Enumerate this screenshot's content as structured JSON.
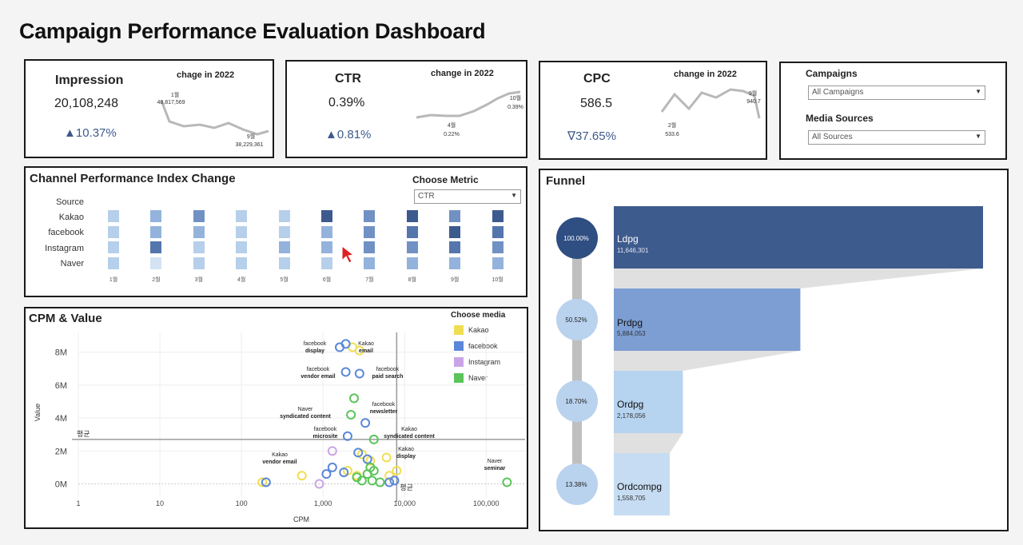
{
  "dashboard": {
    "title": "Campaign Performance Evaluation Dashboard"
  },
  "kpis": {
    "impression": {
      "name": "Impression",
      "value": "20,108,248",
      "change": "▲10.37%",
      "spark_title": "chage in 2022",
      "start_label": "1월",
      "start_value": "48,817,569",
      "end_label": "9월",
      "end_value": "38,229,361"
    },
    "ctr": {
      "name": "CTR",
      "value": "0.39%",
      "change": "▲0.81%",
      "spark_title": "change in 2022",
      "min_label": "4월",
      "min_value": "0.22%",
      "end_label": "10월",
      "end_value": "0.39%"
    },
    "cpc": {
      "name": "CPC",
      "value": "586.5",
      "change": "∇37.65%",
      "spark_title": "change in 2022",
      "min_label": "2월",
      "min_value": "533.6",
      "end_label": "9월",
      "end_value": "940.7"
    }
  },
  "filters": {
    "campaigns_label": "Campaigns",
    "campaigns_value": "All Campaigns",
    "sources_label": "Media Sources",
    "sources_value": "All Sources"
  },
  "channel_index": {
    "title": "Channel Performance Index Change",
    "choose_metric_label": "Choose Metric",
    "metric_value": "CTR",
    "source_header": "Source",
    "sources": [
      "Kakao",
      "facebook",
      "Instagram",
      "Naver"
    ],
    "months": [
      "1월",
      "2월",
      "3월",
      "4월",
      "5월",
      "6월",
      "7월",
      "8월",
      "9월",
      "10월"
    ],
    "intensity": [
      [
        2,
        3,
        4,
        2,
        2,
        6,
        4,
        6,
        4,
        6
      ],
      [
        2,
        3,
        3,
        2,
        2,
        3,
        4,
        5,
        6,
        5
      ],
      [
        2,
        5,
        2,
        2,
        3,
        3,
        4,
        4,
        5,
        4
      ],
      [
        2,
        1,
        2,
        2,
        2,
        2,
        3,
        3,
        3,
        3
      ]
    ],
    "colors": [
      "#ffffff",
      "#d3e3f3",
      "#b6cfea",
      "#93b3dc",
      "#7191c4",
      "#5575ad",
      "#3d5a8f"
    ]
  },
  "cpm_value": {
    "title": "CPM & Value",
    "choose_media_label": "Choose media",
    "media": [
      {
        "name": "Kakao",
        "color": "#f0de52"
      },
      {
        "name": "facebook",
        "color": "#5b87d9"
      },
      {
        "name": "Instagram",
        "color": "#c9a5e8"
      },
      {
        "name": "Naver",
        "color": "#5cc45a"
      }
    ],
    "y_label": "Value",
    "x_label": "CPM",
    "avg_label_y": "평균",
    "avg_label_x": "평균",
    "annotations": [
      {
        "text": "facebook\ndisplay"
      },
      {
        "text": "Kakao\nemail"
      },
      {
        "text": "facebook\nvendor email"
      },
      {
        "text": "facebook\npaid search"
      },
      {
        "text": "Naver\nsyndicated content"
      },
      {
        "text": "facebook\nnewsletter"
      },
      {
        "text": "facebook\nmicrosite"
      },
      {
        "text": "Kakao\nsyndicated content"
      },
      {
        "text": "Kakao\nvendor email"
      },
      {
        "text": "Kakao\ndisplay"
      },
      {
        "text": "Naver\nseminar"
      }
    ]
  },
  "chart_data": {
    "type": "scatter",
    "title": "CPM & Value",
    "xlabel": "CPM",
    "ylabel": "Value",
    "x_scale": "log",
    "xlim": [
      1,
      300000
    ],
    "ylim": [
      -0.8,
      9.2
    ],
    "x_ticks": [
      "1",
      "10",
      "100",
      "1,000",
      "10,000",
      "100,000"
    ],
    "x_tick_values": [
      1,
      10,
      100,
      1000,
      10000,
      100000
    ],
    "y_ticks": [
      "0M",
      "2M",
      "4M",
      "6M",
      "8M"
    ],
    "y_tick_values": [
      0,
      2,
      4,
      6,
      8
    ],
    "avg_x": 8000,
    "avg_y": 2.7,
    "series": [
      {
        "name": "Kakao",
        "points": [
          [
            180,
            0.1
          ],
          [
            550,
            0.5
          ],
          [
            2300,
            8.3
          ],
          [
            2800,
            8.1
          ],
          [
            2000,
            0.8
          ],
          [
            3800,
            1.4
          ],
          [
            3000,
            1.8
          ],
          [
            6000,
            1.6
          ],
          [
            8000,
            0.8
          ],
          [
            6500,
            0.5
          ],
          [
            2600,
            0.5
          ]
        ]
      },
      {
        "name": "facebook",
        "points": [
          [
            1900,
            8.5
          ],
          [
            1600,
            8.3
          ],
          [
            1900,
            6.8
          ],
          [
            2800,
            6.7
          ],
          [
            3300,
            3.7
          ],
          [
            2000,
            2.9
          ],
          [
            2700,
            1.9
          ],
          [
            1300,
            1.0
          ],
          [
            1100,
            0.6
          ],
          [
            1800,
            0.7
          ],
          [
            3500,
            1.5
          ],
          [
            6500,
            0.1
          ],
          [
            7500,
            0.2
          ],
          [
            200,
            0.1
          ]
        ]
      },
      {
        "name": "Instagram",
        "points": [
          [
            1300,
            2.0
          ],
          [
            900,
            0
          ]
        ]
      },
      {
        "name": "Naver",
        "points": [
          [
            2400,
            5.2
          ],
          [
            2200,
            4.2
          ],
          [
            4200,
            2.7
          ],
          [
            3800,
            1.0
          ],
          [
            4200,
            0.8
          ],
          [
            3500,
            0.6
          ],
          [
            4000,
            0.2
          ],
          [
            3000,
            0.2
          ],
          [
            2600,
            0.4
          ],
          [
            5000,
            0.1
          ],
          [
            180000,
            0.1
          ]
        ]
      }
    ]
  },
  "funnel": {
    "title": "Funnel",
    "stages": [
      {
        "name": "Ldpg",
        "count": "11,646,301",
        "pct": "100.00%",
        "value": 11646301
      },
      {
        "name": "Prdpg",
        "count": "5,884,053",
        "pct": "50.52%",
        "value": 5884053
      },
      {
        "name": "Ordpg",
        "count": "2,178,056",
        "pct": "18.70%",
        "value": 2178056
      },
      {
        "name": "Ordcompg",
        "count": "1,558,705",
        "pct": "13.38%",
        "value": 1558705
      }
    ],
    "bar_colors": [
      "#3e5b8e",
      "#7c9ed3",
      "#b6d3f0",
      "#c6dcf2"
    ],
    "circle_colors": [
      "#2f4e82",
      "#b9d2ee",
      "#b9d2ee",
      "#b9d2ee"
    ]
  }
}
